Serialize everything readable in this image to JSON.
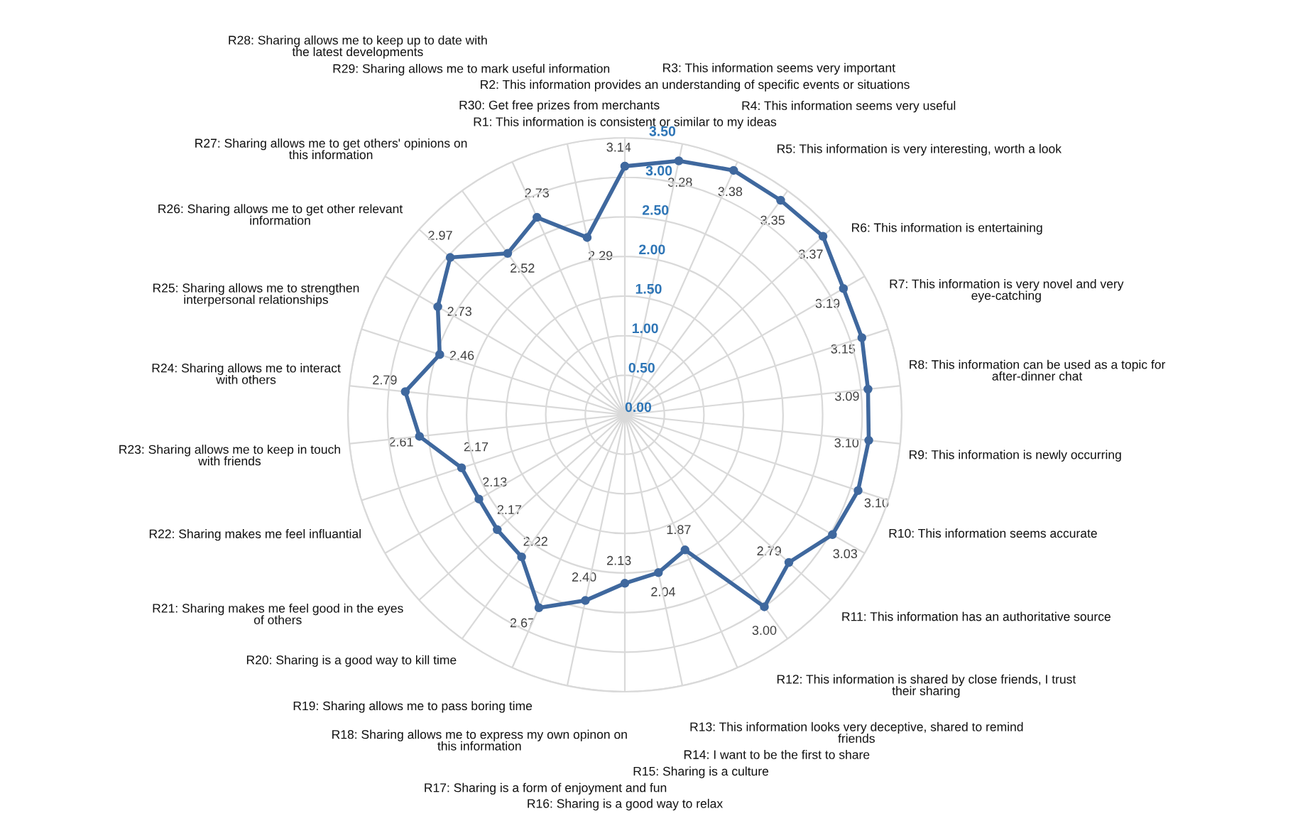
{
  "chart_data": {
    "type": "radar",
    "categories": [
      "R1: This information is consistent or similar to my ideas",
      "R2: This information provides an understanding of specific events or situations",
      "R3: This information seems very important",
      "R4: This information seems very useful",
      "R5: This information is very interesting, worth a look",
      "R6: This information is entertaining",
      "R7: This information is very novel and very\neye-catching",
      "R8: This information can be used as a topic for\nafter-dinner chat",
      "R9: This information is newly occurring",
      "R10: This information seems accurate",
      "R11: This information has an authoritative source",
      "R12: This information is shared by close friends, I trust\ntheir sharing",
      "R13: This information looks very deceptive, shared to remind\nfriends",
      "R14: I want to be the first to share",
      "R15: Sharing is a culture",
      "R16: Sharing is a good way to relax",
      "R17: Sharing is a form of enjoyment and fun",
      "R18: Sharing allows me to express my own opinon on\nthis information",
      "R19: Sharing allows me to pass boring time",
      "R20: Sharing is a good way to kill time",
      "R21: Sharing makes me feel good in the eyes\nof others",
      "R22: Sharing makes me feel influantial",
      "R23: Sharing allows me to keep in touch\nwith friends",
      "R24: Sharing allows me to interact\nwith others",
      "R25: Sharing allows me to strengthen\ninterpersonal relationships",
      "R26: Sharing allows me to get other relevant\ninformation",
      "R27: Sharing allows me to get others' opinions on\nthis information",
      "R28: Sharing allows me to keep up to date with\nthe latest developments",
      "R29: Sharing allows me to mark useful information",
      "R30: Get free prizes from merchants"
    ],
    "series": [
      {
        "color": "#3f689e",
        "values": [
          3.14,
          3.28,
          3.38,
          3.35,
          3.37,
          3.19,
          3.15,
          3.09,
          3.1,
          3.1,
          3.03,
          2.79,
          3.0,
          1.87,
          2.04,
          2.13,
          2.4,
          2.67,
          2.22,
          2.17,
          2.13,
          2.17,
          2.61,
          2.79,
          2.46,
          2.73,
          2.97,
          2.52,
          2.73,
          2.29
        ],
        "value_labels": [
          "3.14",
          "3.28",
          "3.38",
          "3.35",
          "3.37",
          "3.19",
          "3.15",
          "3.09",
          "3.10",
          "3.10",
          "3.03",
          "2.79",
          "3.00",
          "1.87",
          "2.04",
          "2.13",
          "2.40",
          "2.67",
          "2.22",
          "2.17",
          "2.13",
          "2.17",
          "2.61",
          "2.79",
          "2.46",
          "2.73",
          "2.97",
          "2.52",
          "2.73",
          "2.29"
        ]
      }
    ],
    "ylim": [
      0,
      3.5
    ],
    "yticks": [
      {
        "value": 0,
        "label": "0.00"
      },
      {
        "value": 0.5,
        "label": "0.50"
      },
      {
        "value": 1,
        "label": "1.00"
      },
      {
        "value": 1.5,
        "label": "1.50"
      },
      {
        "value": 2,
        "label": "2.00"
      },
      {
        "value": 2.5,
        "label": "2.50"
      },
      {
        "value": 3,
        "label": "3.00"
      },
      {
        "value": 3.5,
        "label": "3.50"
      }
    ],
    "grid": true,
    "marker": "circle",
    "line_style": "solid"
  }
}
